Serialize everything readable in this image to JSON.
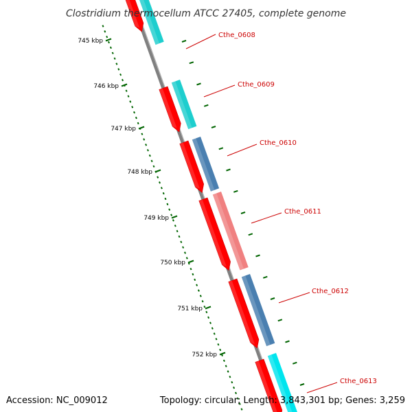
{
  "title": "Clostridium thermocellum ATCC 27405, complete genome",
  "accession": "Accession: NC_009012",
  "summary": "Topology: circular; Length: 3,843,301 bp; Genes: 3,259",
  "colors": {
    "cds": "#ff0000",
    "cds_dark": "#cc0000",
    "backbone": "#808080",
    "tick": "#006400",
    "label": "#cc0000",
    "cog_cyan": "#1ecece",
    "cog_bright_cyan": "#00e5ee",
    "cog_steelblue": "#4a7fb0",
    "cog_salmon": "#f08080",
    "cog_grey": "#b4b4b4"
  },
  "ticks": [
    {
      "label": "745 kbp"
    },
    {
      "label": "746 kbp"
    },
    {
      "label": "747 kbp"
    },
    {
      "label": "748 kbp"
    },
    {
      "label": "749 kbp"
    },
    {
      "label": "750 kbp"
    },
    {
      "label": "751 kbp"
    },
    {
      "label": "752 kbp"
    }
  ],
  "genes": [
    {
      "id": "Cthe_0608",
      "cog_color": "#1ecece"
    },
    {
      "id": "Cthe_0609",
      "cog_color": "#1ecece"
    },
    {
      "id": "Cthe_0610",
      "cog_color": "#4a7fb0"
    },
    {
      "id": "Cthe_0611",
      "cog_color": "#f08080"
    },
    {
      "id": "Cthe_0612",
      "cog_color": "#4a7fb0"
    },
    {
      "id": "Cthe_0613",
      "cog_color": "#00e5ee"
    }
  ]
}
